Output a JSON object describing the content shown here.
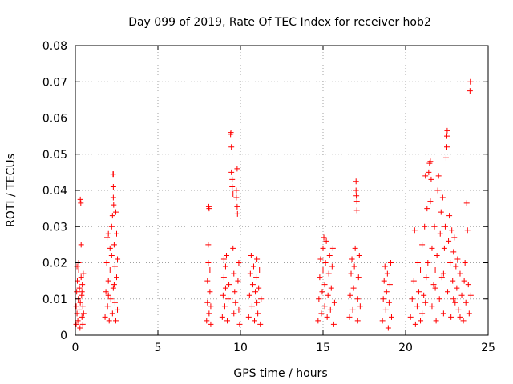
{
  "chart_data": {
    "type": "scatter",
    "title": "Day 099 of 2019, Rate Of TEC Index for receiver hob2",
    "xlabel": "GPS time / hours",
    "ylabel": "ROTI / TECUs",
    "xlim": [
      0,
      25
    ],
    "ylim": [
      0,
      0.08
    ],
    "xticks": [
      0,
      5,
      10,
      15,
      20,
      25
    ],
    "yticks": [
      0,
      0.01,
      0.02,
      0.03,
      0.04,
      0.05,
      0.06,
      0.07,
      0.08
    ],
    "xtick_labels": [
      "0",
      "5",
      "10",
      "15",
      "20",
      "25"
    ],
    "ytick_labels": [
      "0",
      "0.01",
      "0.02",
      "0.03",
      "0.04",
      "0.05",
      "0.06",
      "0.07",
      "0.08"
    ],
    "grid": true,
    "marker": "+",
    "color": "#ff0000",
    "series": [
      {
        "name": "ROTI",
        "points": [
          [
            0.05,
            0.003
          ],
          [
            0.05,
            0.008
          ],
          [
            0.08,
            0.012
          ],
          [
            0.1,
            0.006
          ],
          [
            0.12,
            0.015
          ],
          [
            0.15,
            0.004
          ],
          [
            0.18,
            0.01
          ],
          [
            0.2,
            0.018
          ],
          [
            0.22,
            0.007
          ],
          [
            0.25,
            0.013
          ],
          [
            0.28,
            0.002
          ],
          [
            0.3,
            0.009
          ],
          [
            0.3,
            0.0375
          ],
          [
            0.33,
            0.0365
          ],
          [
            0.35,
            0.016
          ],
          [
            0.35,
            0.025
          ],
          [
            0.38,
            0.011
          ],
          [
            0.4,
            0.005
          ],
          [
            0.42,
            0.014
          ],
          [
            0.45,
            0.008
          ],
          [
            0.48,
            0.017
          ],
          [
            0.5,
            0.006
          ],
          [
            0.1,
            0.019
          ],
          [
            0.2,
            0.02
          ],
          [
            0.4,
            0.012
          ],
          [
            0.45,
            0.003
          ],
          [
            1.8,
            0.005
          ],
          [
            1.85,
            0.012
          ],
          [
            1.9,
            0.02
          ],
          [
            1.92,
            0.027
          ],
          [
            1.95,
            0.008
          ],
          [
            2.0,
            0.015
          ],
          [
            2.0,
            0.028
          ],
          [
            2.05,
            0.004
          ],
          [
            2.1,
            0.018
          ],
          [
            2.1,
            0.024
          ],
          [
            2.15,
            0.01
          ],
          [
            2.2,
            0.022
          ],
          [
            2.2,
            0.03
          ],
          [
            2.25,
            0.006
          ],
          [
            2.25,
            0.033
          ],
          [
            2.28,
            0.0445
          ],
          [
            2.3,
            0.0445
          ],
          [
            2.3,
            0.041
          ],
          [
            2.3,
            0.038
          ],
          [
            2.32,
            0.036
          ],
          [
            2.35,
            0.014
          ],
          [
            2.35,
            0.025
          ],
          [
            2.4,
            0.009
          ],
          [
            2.4,
            0.019
          ],
          [
            2.45,
            0.034
          ],
          [
            2.45,
            0.004
          ],
          [
            2.5,
            0.016
          ],
          [
            2.5,
            0.028
          ],
          [
            2.55,
            0.007
          ],
          [
            2.55,
            0.021
          ],
          [
            2.0,
            0.011
          ],
          [
            2.3,
            0.013
          ],
          [
            7.95,
            0.004
          ],
          [
            8.0,
            0.009
          ],
          [
            8.0,
            0.015
          ],
          [
            8.05,
            0.02
          ],
          [
            8.05,
            0.025
          ],
          [
            8.08,
            0.0355
          ],
          [
            8.1,
            0.035
          ],
          [
            8.1,
            0.006
          ],
          [
            8.15,
            0.012
          ],
          [
            8.15,
            0.018
          ],
          [
            8.2,
            0.003
          ],
          [
            8.2,
            0.008
          ],
          [
            8.9,
            0.005
          ],
          [
            8.95,
            0.011
          ],
          [
            9.0,
            0.016
          ],
          [
            9.0,
            0.021
          ],
          [
            9.05,
            0.008
          ],
          [
            9.1,
            0.013
          ],
          [
            9.1,
            0.019
          ],
          [
            9.15,
            0.022
          ],
          [
            9.2,
            0.004
          ],
          [
            9.25,
            0.01
          ],
          [
            9.3,
            0.014
          ],
          [
            9.4,
            0.0555
          ],
          [
            9.42,
            0.056
          ],
          [
            9.45,
            0.052
          ],
          [
            9.45,
            0.045
          ],
          [
            9.5,
            0.043
          ],
          [
            9.5,
            0.041
          ],
          [
            9.55,
            0.039
          ],
          [
            9.55,
            0.024
          ],
          [
            9.6,
            0.017
          ],
          [
            9.6,
            0.006
          ],
          [
            9.65,
            0.012
          ],
          [
            9.7,
            0.009
          ],
          [
            9.75,
            0.04
          ],
          [
            9.75,
            0.038
          ],
          [
            9.8,
            0.046
          ],
          [
            9.8,
            0.0355
          ],
          [
            9.82,
            0.0335
          ],
          [
            9.85,
            0.015
          ],
          [
            9.9,
            0.02
          ],
          [
            9.9,
            0.007
          ],
          [
            9.95,
            0.003
          ],
          [
            10.5,
            0.005
          ],
          [
            10.55,
            0.011
          ],
          [
            10.6,
            0.017
          ],
          [
            10.65,
            0.022
          ],
          [
            10.7,
            0.008
          ],
          [
            10.75,
            0.014
          ],
          [
            10.8,
            0.019
          ],
          [
            10.85,
            0.004
          ],
          [
            10.9,
            0.012
          ],
          [
            10.95,
            0.016
          ],
          [
            11.0,
            0.021
          ],
          [
            11.0,
            0.009
          ],
          [
            11.05,
            0.006
          ],
          [
            11.1,
            0.013
          ],
          [
            11.15,
            0.018
          ],
          [
            11.2,
            0.003
          ],
          [
            11.25,
            0.01
          ],
          [
            14.7,
            0.004
          ],
          [
            14.75,
            0.01
          ],
          [
            14.8,
            0.016
          ],
          [
            14.85,
            0.021
          ],
          [
            14.9,
            0.006
          ],
          [
            14.95,
            0.012
          ],
          [
            15.0,
            0.018
          ],
          [
            15.0,
            0.024
          ],
          [
            15.05,
            0.027
          ],
          [
            15.1,
            0.008
          ],
          [
            15.1,
            0.014
          ],
          [
            15.15,
            0.02
          ],
          [
            15.2,
            0.026
          ],
          [
            15.25,
            0.005
          ],
          [
            15.3,
            0.011
          ],
          [
            15.35,
            0.017
          ],
          [
            15.4,
            0.022
          ],
          [
            15.45,
            0.007
          ],
          [
            15.5,
            0.013
          ],
          [
            15.55,
            0.019
          ],
          [
            15.6,
            0.024
          ],
          [
            15.65,
            0.003
          ],
          [
            15.7,
            0.009
          ],
          [
            16.6,
            0.005
          ],
          [
            16.65,
            0.011
          ],
          [
            16.7,
            0.017
          ],
          [
            16.75,
            0.021
          ],
          [
            16.8,
            0.007
          ],
          [
            16.85,
            0.013
          ],
          [
            16.9,
            0.019
          ],
          [
            16.95,
            0.024
          ],
          [
            17.0,
            0.0425
          ],
          [
            17.0,
            0.04
          ],
          [
            17.02,
            0.0385
          ],
          [
            17.05,
            0.037
          ],
          [
            17.05,
            0.0345
          ],
          [
            17.1,
            0.004
          ],
          [
            17.1,
            0.01
          ],
          [
            17.15,
            0.016
          ],
          [
            17.2,
            0.022
          ],
          [
            17.25,
            0.008
          ],
          [
            18.6,
            0.004
          ],
          [
            18.65,
            0.01
          ],
          [
            18.7,
            0.015
          ],
          [
            18.75,
            0.019
          ],
          [
            18.8,
            0.007
          ],
          [
            18.85,
            0.012
          ],
          [
            18.9,
            0.017
          ],
          [
            18.95,
            0.002
          ],
          [
            19.0,
            0.009
          ],
          [
            19.05,
            0.014
          ],
          [
            19.1,
            0.02
          ],
          [
            19.15,
            0.005
          ],
          [
            20.3,
            0.005
          ],
          [
            20.4,
            0.01
          ],
          [
            20.5,
            0.015
          ],
          [
            20.55,
            0.029
          ],
          [
            20.6,
            0.003
          ],
          [
            20.7,
            0.008
          ],
          [
            20.75,
            0.02
          ],
          [
            20.8,
            0.012
          ],
          [
            20.9,
            0.018
          ],
          [
            21.0,
            0.006
          ],
          [
            21.0,
            0.025
          ],
          [
            21.1,
            0.011
          ],
          [
            21.15,
            0.03
          ],
          [
            21.2,
            0.044
          ],
          [
            21.25,
            0.016
          ],
          [
            21.3,
            0.035
          ],
          [
            21.35,
            0.02
          ],
          [
            21.4,
            0.045
          ],
          [
            21.45,
            0.0475
          ],
          [
            21.5,
            0.048
          ],
          [
            21.5,
            0.037
          ],
          [
            21.55,
            0.043
          ],
          [
            21.6,
            0.008
          ],
          [
            21.6,
            0.024
          ],
          [
            21.7,
            0.014
          ],
          [
            21.75,
            0.03
          ],
          [
            21.8,
            0.018
          ],
          [
            21.85,
            0.004
          ],
          [
            21.9,
            0.022
          ],
          [
            21.95,
            0.04
          ],
          [
            22.0,
            0.044
          ],
          [
            22.05,
            0.01
          ],
          [
            22.1,
            0.028
          ],
          [
            22.15,
            0.034
          ],
          [
            22.2,
            0.016
          ],
          [
            22.25,
            0.038
          ],
          [
            22.3,
            0.006
          ],
          [
            22.35,
            0.024
          ],
          [
            22.4,
            0.03
          ],
          [
            22.45,
            0.049
          ],
          [
            22.5,
            0.052
          ],
          [
            22.5,
            0.055
          ],
          [
            22.52,
            0.0565
          ],
          [
            22.55,
            0.012
          ],
          [
            22.6,
            0.026
          ],
          [
            22.65,
            0.033
          ],
          [
            22.7,
            0.02
          ],
          [
            22.75,
            0.005
          ],
          [
            22.8,
            0.029
          ],
          [
            22.85,
            0.015
          ],
          [
            22.9,
            0.023
          ],
          [
            22.95,
            0.027
          ],
          [
            23.0,
            0.009
          ],
          [
            23.05,
            0.019
          ],
          [
            23.1,
            0.013
          ],
          [
            23.15,
            0.021
          ],
          [
            23.2,
            0.007
          ],
          [
            23.3,
            0.017
          ],
          [
            23.4,
            0.011
          ],
          [
            23.5,
            0.004
          ],
          [
            23.55,
            0.015
          ],
          [
            23.6,
            0.02
          ],
          [
            23.65,
            0.009
          ],
          [
            23.7,
            0.0365
          ],
          [
            23.75,
            0.029
          ],
          [
            23.8,
            0.014
          ],
          [
            23.85,
            0.006
          ],
          [
            23.9,
            0.0675
          ],
          [
            23.92,
            0.07
          ],
          [
            23.95,
            0.011
          ],
          [
            20.9,
            0.004
          ],
          [
            21.2,
            0.009
          ],
          [
            21.8,
            0.013
          ],
          [
            22.3,
            0.017
          ],
          [
            22.9,
            0.01
          ],
          [
            23.3,
            0.005
          ]
        ]
      }
    ]
  }
}
